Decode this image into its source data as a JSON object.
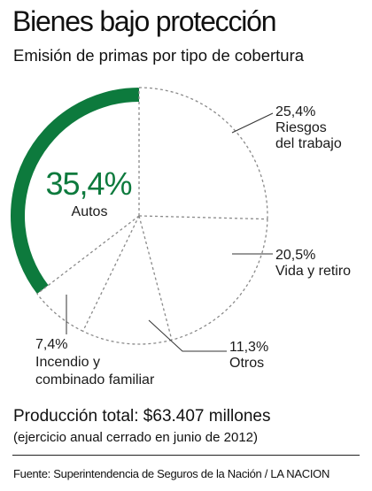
{
  "title": "Bienes bajo protección",
  "subtitle": "Emisión de primas por tipo de cobertura",
  "footer": {
    "total": "Producción total: $63.407 millones",
    "note": "(ejercicio anual cerrado en junio de 2012)",
    "source": "Fuente: Superintendencia de Seguros de la Nación / LA NACION"
  },
  "colors": {
    "highlight": "#0d7a3d",
    "dashed": "#8a8a8a",
    "leader": "#333333"
  },
  "chart_data": {
    "type": "pie",
    "start": "12 o'clock",
    "direction": "clockwise",
    "unit": "%",
    "slices": [
      {
        "category": "Riesgos del trabajo",
        "value": 25.4,
        "label": "25,4%",
        "lines": [
          "Riesgos",
          "del trabajo"
        ],
        "highlight": false
      },
      {
        "category": "Vida y retiro",
        "value": 20.5,
        "label": "20,5%",
        "lines": [
          "Vida y retiro"
        ],
        "highlight": false
      },
      {
        "category": "Otros",
        "value": 11.3,
        "label": "11,3%",
        "lines": [
          "Otros"
        ],
        "highlight": false
      },
      {
        "category": "Incendio y combinado familiar",
        "value": 7.4,
        "label": "7,4%",
        "lines": [
          "Incendio y",
          "combinado familiar"
        ],
        "highlight": false
      },
      {
        "category": "Autos",
        "value": 35.4,
        "label": "35,4%",
        "lines": [
          "Autos"
        ],
        "highlight": true
      }
    ]
  }
}
